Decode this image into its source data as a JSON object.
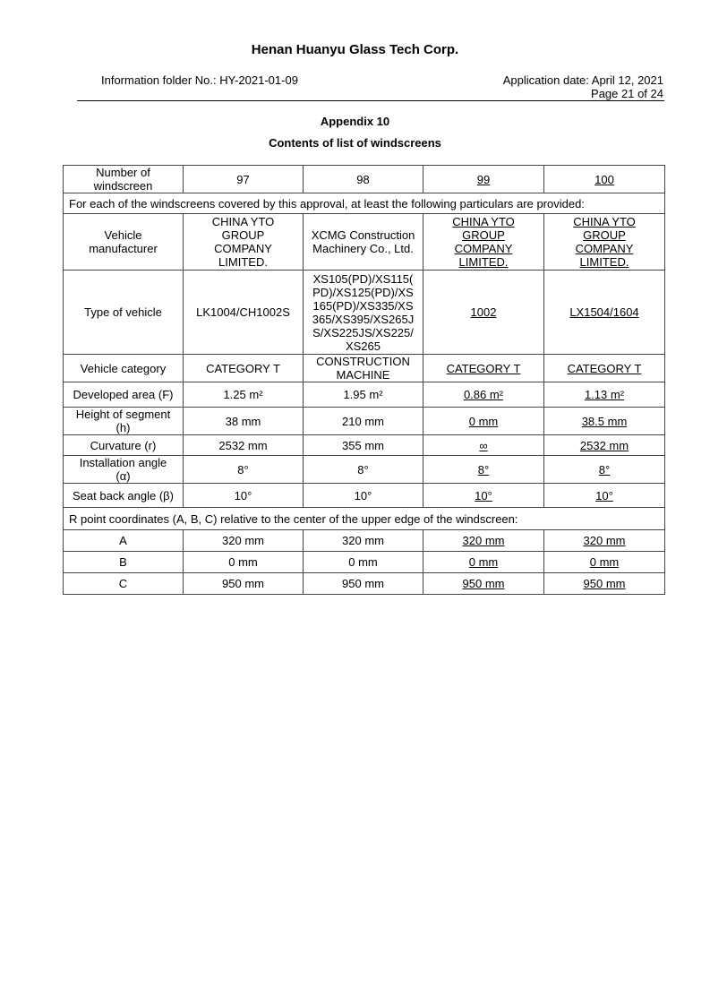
{
  "header": {
    "company": "Henan Huanyu Glass Tech Corp.",
    "folder": "Information folder No.: HY-2021-01-09",
    "application_date": "Application date: April 12, 2021",
    "page": "Page 21 of 24"
  },
  "appendix": "Appendix 10",
  "subtitle": "Contents of list of windscreens",
  "table": {
    "number_label": "Number of\nwindscreen",
    "numbers": [
      "97",
      "98",
      "99",
      "100"
    ],
    "particulars_note": "For each of the windscreens covered by this approval, at least the following particulars are provided:",
    "rows": [
      {
        "label": "Vehicle\nmanufacturer",
        "values": [
          "CHINA YTO\nGROUP\nCOMPANY\nLIMITED.",
          "XCMG Construction\nMachinery Co., Ltd.",
          "CHINA YTO\nGROUP\nCOMPANY\nLIMITED.",
          "CHINA YTO\nGROUP\nCOMPANY\nLIMITED."
        ]
      },
      {
        "label": "Type of vehicle",
        "values": [
          "LK1004/CH1002S",
          "XS105(PD)/XS115(\nPD)/XS125(PD)/XS\n165(PD)/XS335/XS\n365/XS395/XS265J\nS/XS225JS/XS225/\nXS265",
          "1002",
          "LX1504/1604"
        ]
      },
      {
        "label": "Vehicle category",
        "values": [
          "CATEGORY T",
          "CONSTRUCTION\nMACHINE",
          "CATEGORY T",
          "CATEGORY T"
        ]
      },
      {
        "label": "Developed area (F)",
        "values": [
          "1.25 m²",
          "1.95 m²",
          "0.86 m²",
          "1.13 m²"
        ]
      },
      {
        "label": "Height of segment\n(h)",
        "values": [
          "38 mm",
          "210 mm",
          "0 mm",
          "38.5 mm"
        ]
      },
      {
        "label": "Curvature (r)",
        "values": [
          "2532 mm",
          "355 mm",
          "∞",
          "2532 mm"
        ]
      },
      {
        "label": "Installation angle\n(α)",
        "values": [
          "8°",
          "8°",
          "8°",
          "8°"
        ]
      },
      {
        "label": "Seat back angle (β)",
        "values": [
          "10°",
          "10°",
          "10°",
          "10°"
        ]
      }
    ],
    "r_point_note": "R point coordinates (A, B, C) relative to the center of the upper edge of the windscreen:",
    "r_rows": [
      {
        "label": "A",
        "values": [
          "320 mm",
          "320 mm",
          "320 mm",
          "320 mm"
        ]
      },
      {
        "label": "B",
        "values": [
          "0 mm",
          "0 mm",
          "0 mm",
          "0 mm"
        ]
      },
      {
        "label": "C",
        "values": [
          "950 mm",
          "950 mm",
          "950 mm",
          "950 mm"
        ]
      }
    ]
  }
}
